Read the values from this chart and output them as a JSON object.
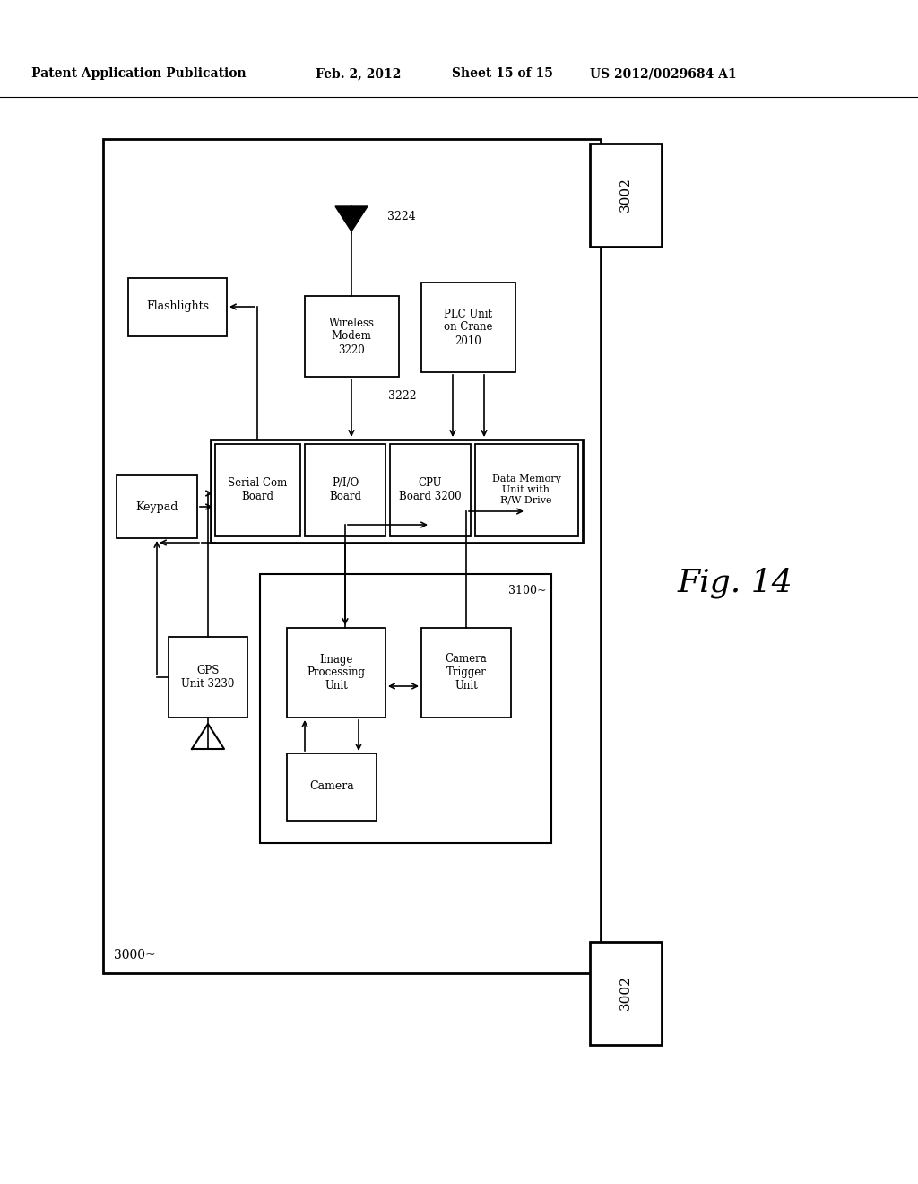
{
  "bg_color": "#ffffff",
  "header_left": "Patent Application Publication",
  "header_date": "Feb. 2, 2012",
  "header_sheet": "Sheet 15 of 15",
  "header_patent": "US 2012/0029684 A1",
  "fig_label": "Fig. 14"
}
